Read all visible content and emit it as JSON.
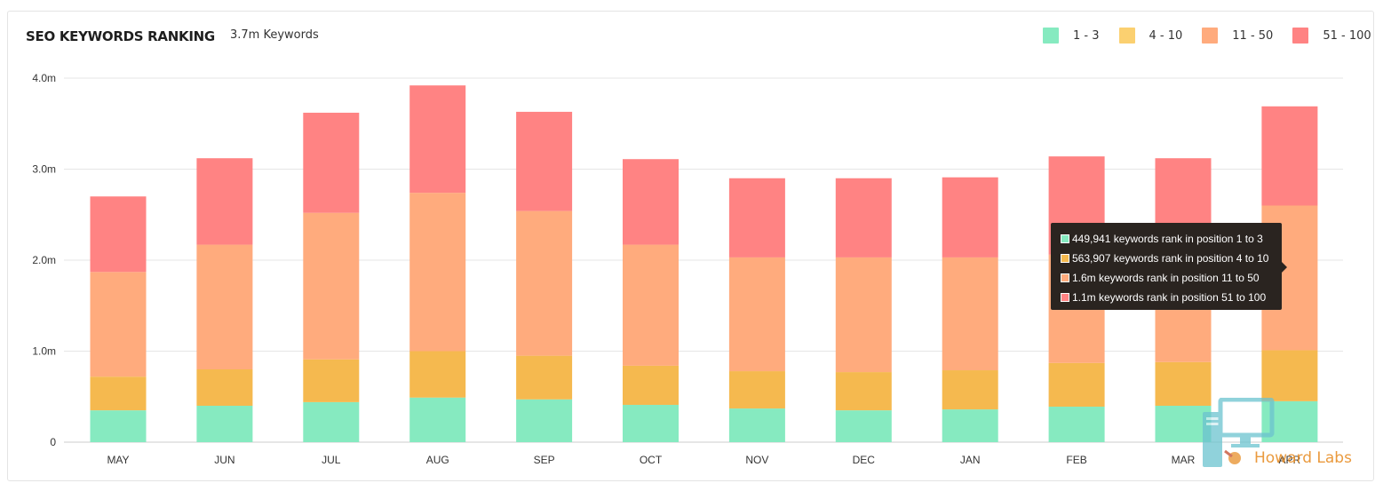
{
  "header": {
    "title": "SEO KEYWORDS RANKING",
    "subtitle": "3.7m Keywords"
  },
  "legend": [
    {
      "label": "1 - 3",
      "color": "#86eac0"
    },
    {
      "label": "4 - 10",
      "color": "#fbd070"
    },
    {
      "label": "11 - 50",
      "color": "#ffab7d"
    },
    {
      "label": "51 - 100",
      "color": "#ff8383"
    }
  ],
  "tooltip": {
    "rows": [
      {
        "text": "449,941 keywords rank in position 1 to 3",
        "color": "#86eac0"
      },
      {
        "text": "563,907 keywords rank in position 4 to 10",
        "color": "#f5b94f"
      },
      {
        "text": "1.6m keywords rank in position 11 to 50",
        "color": "#ffab7d"
      },
      {
        "text": "1.1m keywords rank in position 51 to 100",
        "color": "#ff8383"
      }
    ]
  },
  "watermark": {
    "text": "Howard Labs"
  },
  "chart_data": {
    "type": "bar",
    "stacked": true,
    "categories": [
      "MAY",
      "JUN",
      "JUL",
      "AUG",
      "SEP",
      "OCT",
      "NOV",
      "DEC",
      "JAN",
      "FEB",
      "MAR",
      "APR"
    ],
    "ylim": [
      0,
      4.0
    ],
    "yticks": [
      0,
      1.0,
      2.0,
      3.0,
      4.0
    ],
    "ytick_labels": [
      "0",
      "1.0m",
      "2.0m",
      "3.0m",
      "4.0m"
    ],
    "grid": true,
    "legend_position": "top-right",
    "series": [
      {
        "name": "1 - 3",
        "color": "#86eac0",
        "values": [
          0.35,
          0.4,
          0.44,
          0.49,
          0.47,
          0.41,
          0.37,
          0.35,
          0.36,
          0.39,
          0.4,
          0.45
        ]
      },
      {
        "name": "4 - 10",
        "color": "#f5b94f",
        "values": [
          0.37,
          0.4,
          0.47,
          0.51,
          0.48,
          0.43,
          0.41,
          0.42,
          0.43,
          0.48,
          0.48,
          0.56
        ]
      },
      {
        "name": "11 - 50",
        "color": "#ffab7d",
        "values": [
          1.15,
          1.37,
          1.61,
          1.74,
          1.59,
          1.33,
          1.25,
          1.26,
          1.24,
          1.19,
          1.18,
          1.59
        ]
      },
      {
        "name": "51 - 100",
        "color": "#ff8383",
        "values": [
          0.83,
          0.95,
          1.1,
          1.18,
          1.09,
          0.94,
          0.87,
          0.87,
          0.88,
          1.08,
          1.06,
          1.09
        ]
      }
    ]
  }
}
